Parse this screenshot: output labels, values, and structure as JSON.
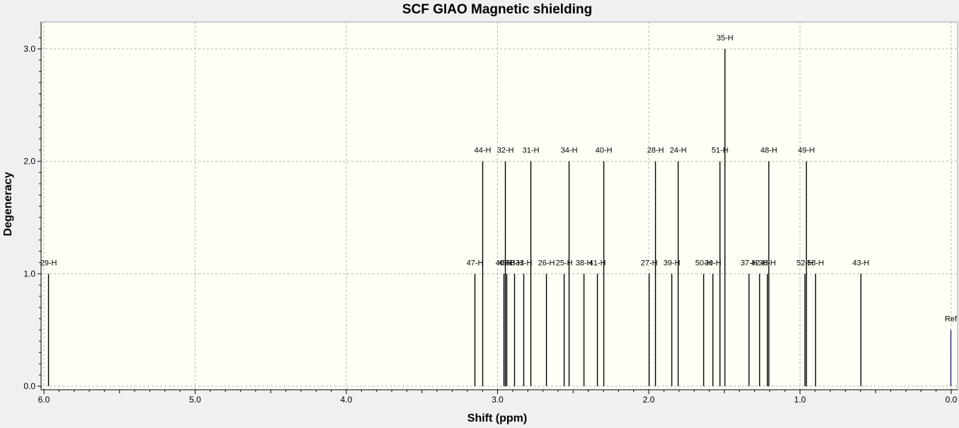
{
  "chart_data": {
    "type": "bar",
    "title": "SCF GIAO Magnetic shielding",
    "xlabel": "Shift (ppm)",
    "ylabel": "Degeneracy",
    "xlim": [
      6.0,
      0.0
    ],
    "ylim": [
      0.0,
      3.2
    ],
    "x_reversed": true,
    "x_ticks": [
      "6.0",
      "5.0",
      "4.0",
      "3.0",
      "2.0",
      "1.0",
      "0.0"
    ],
    "y_ticks": [
      "0.0",
      "1.0",
      "2.0",
      "3.0"
    ],
    "grid": true,
    "plot_background": "#fffff6",
    "peak_color": "#000000",
    "reference_color": "#1f2a8a",
    "peaks": [
      {
        "label": "29-H",
        "x": 5.97,
        "y": 1
      },
      {
        "label": "47-H",
        "x": 3.15,
        "y": 1
      },
      {
        "label": "44-H",
        "x": 3.1,
        "y": 2
      },
      {
        "label": "46-H",
        "x": 2.96,
        "y": 1
      },
      {
        "label": "32-H",
        "x": 2.95,
        "y": 2
      },
      {
        "label": "45-H",
        "x": 2.94,
        "y": 1
      },
      {
        "label": "53-H",
        "x": 2.89,
        "y": 1
      },
      {
        "label": "33-H",
        "x": 2.83,
        "y": 1
      },
      {
        "label": "31-H",
        "x": 2.78,
        "y": 2
      },
      {
        "label": "26-H",
        "x": 2.68,
        "y": 1
      },
      {
        "label": "25-H",
        "x": 2.56,
        "y": 1
      },
      {
        "label": "34-H",
        "x": 2.53,
        "y": 2
      },
      {
        "label": "38-H",
        "x": 2.43,
        "y": 1
      },
      {
        "label": "41-H",
        "x": 2.34,
        "y": 1
      },
      {
        "label": "40-H",
        "x": 2.3,
        "y": 2
      },
      {
        "label": "27-H",
        "x": 2.0,
        "y": 1
      },
      {
        "label": "28-H",
        "x": 1.96,
        "y": 2
      },
      {
        "label": "39-H",
        "x": 1.85,
        "y": 1
      },
      {
        "label": "24-H",
        "x": 1.81,
        "y": 2
      },
      {
        "label": "50-H",
        "x": 1.64,
        "y": 1
      },
      {
        "label": "30-H",
        "x": 1.58,
        "y": 1
      },
      {
        "label": "51-H",
        "x": 1.53,
        "y": 2
      },
      {
        "label": "35-H",
        "x": 1.5,
        "y": 3
      },
      {
        "label": "37-H",
        "x": 1.34,
        "y": 1
      },
      {
        "label": "42-H",
        "x": 1.27,
        "y": 1
      },
      {
        "label": "36-H",
        "x": 1.22,
        "y": 1
      },
      {
        "label": "48-H",
        "x": 1.21,
        "y": 2
      },
      {
        "label": "52-H",
        "x": 0.97,
        "y": 1
      },
      {
        "label": "49-H",
        "x": 0.96,
        "y": 2
      },
      {
        "label": "58-H",
        "x": 0.9,
        "y": 1
      },
      {
        "label": "43-H",
        "x": 0.6,
        "y": 1
      }
    ],
    "reference": {
      "label": "Ref",
      "x": 0.0,
      "y": 0.5
    }
  }
}
